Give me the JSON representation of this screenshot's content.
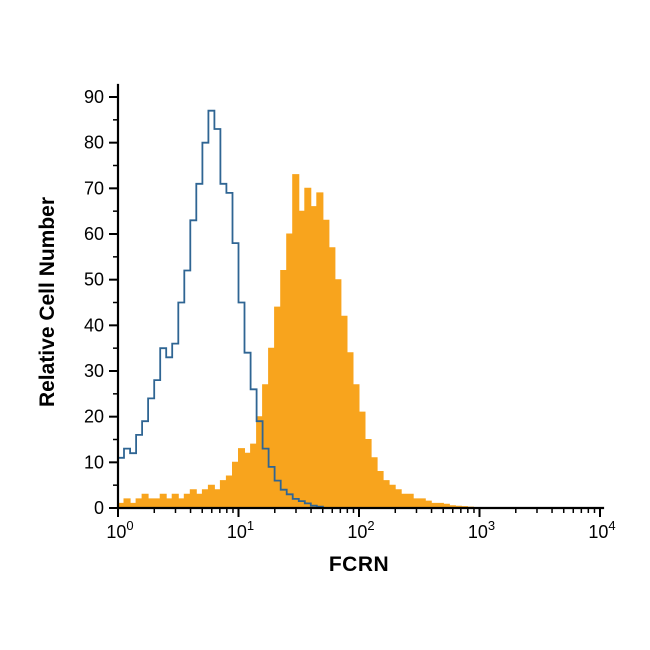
{
  "chart_data": {
    "type": "histogram",
    "title": "",
    "xlabel": "FCRN",
    "ylabel": "Relative Cell Number",
    "x_scale": "log10",
    "x_range_log": [
      0,
      4
    ],
    "ylim": [
      0,
      90
    ],
    "y_tick_step": 10,
    "grid": "off",
    "legend": "none",
    "y_tick_labels": [
      "0",
      "10",
      "20",
      "30",
      "40",
      "50",
      "60",
      "70",
      "80",
      "90"
    ],
    "x_ticks": [
      {
        "base": "10",
        "sup": "0"
      },
      {
        "base": "10",
        "sup": "1"
      },
      {
        "base": "10",
        "sup": "2"
      },
      {
        "base": "10",
        "sup": "3"
      },
      {
        "base": "10",
        "sup": "4"
      }
    ],
    "colors": {
      "open_histogram": "#2f6593",
      "filled_histogram": "#F8A41D",
      "axis": "#000000"
    },
    "series": [
      {
        "name": "filled-orange-histogram",
        "style": "filled",
        "color": "#F8A41D",
        "log_x_start": 0,
        "log_x_step": 0.05,
        "values": [
          1,
          2,
          1,
          2,
          3,
          2,
          2,
          3,
          2,
          3,
          2,
          3,
          4,
          3,
          4,
          5,
          4,
          6,
          7,
          10,
          13,
          12,
          14,
          20,
          27,
          35,
          44,
          52,
          60,
          73,
          65,
          70,
          66,
          69,
          63,
          57,
          50,
          42,
          34,
          27,
          21,
          15,
          11,
          8,
          6,
          5,
          4,
          3,
          3,
          2,
          2,
          1.5,
          1,
          1,
          0.8,
          0.5,
          0.4,
          0.3,
          0.2,
          0.1,
          0
        ]
      },
      {
        "name": "open-blue-histogram",
        "style": "open",
        "color": "#2f6593",
        "log_x_start": 0,
        "log_x_step": 0.05,
        "values": [
          11,
          13,
          12,
          16,
          19,
          24,
          28,
          35,
          33,
          36,
          45,
          52,
          63,
          71,
          80,
          87,
          83,
          71,
          69,
          58,
          45,
          34,
          26,
          19,
          13,
          9,
          6,
          4,
          3,
          2,
          1.5,
          1,
          0.5,
          0.3,
          0
        ]
      }
    ]
  }
}
